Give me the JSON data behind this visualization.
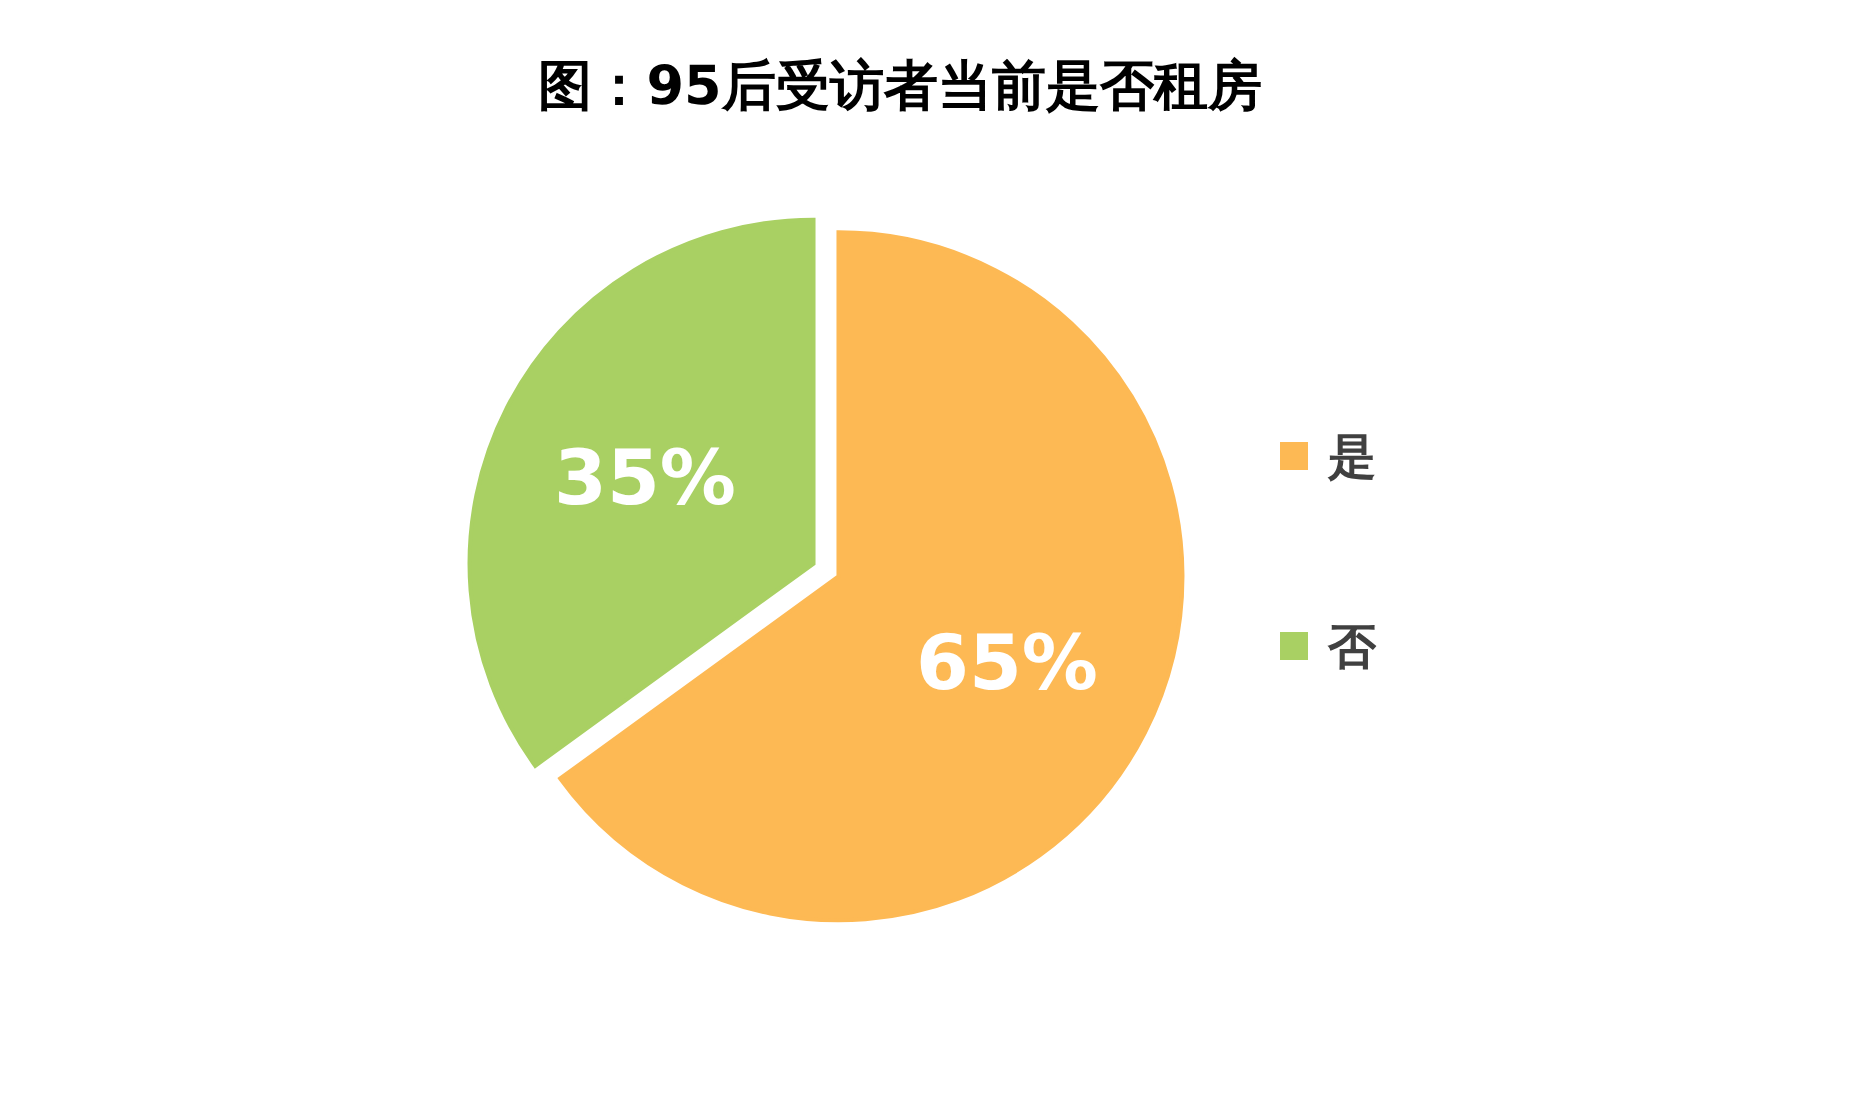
{
  "chart_data": {
    "type": "pie",
    "title": "图：95后受访者当前是否租房",
    "categories": [
      "是",
      "否"
    ],
    "values": [
      65,
      35
    ],
    "colors": [
      "#fdb954",
      "#a9d063"
    ],
    "value_labels": [
      "65%",
      "35%"
    ],
    "legend": "right"
  }
}
